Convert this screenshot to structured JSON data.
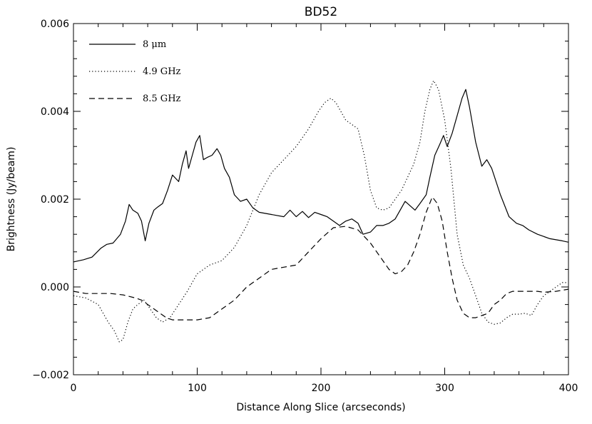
{
  "chart_data": {
    "type": "line",
    "title": "BD52",
    "xlabel": "Distance Along Slice (arcseconds)",
    "ylabel": "Brightness (Jy/beam)",
    "xlim": [
      0,
      400
    ],
    "ylim": [
      -0.002,
      0.006
    ],
    "x_ticks": [
      "0",
      "100",
      "200",
      "300",
      "400"
    ],
    "y_ticks": [
      "−0.002",
      "0.000",
      "0.002",
      "0.004",
      "0.006"
    ],
    "grid": false,
    "legend_position": "top-left",
    "colors": {
      "line": "#000000",
      "background": "#ffffff"
    },
    "series": [
      {
        "name": "8 μm",
        "style": "solid",
        "x": [
          0,
          8,
          15,
          22,
          27,
          32,
          38,
          42,
          45,
          48,
          52,
          55,
          58,
          61,
          65,
          68,
          72,
          76,
          80,
          85,
          88,
          91,
          93,
          96,
          99,
          102,
          105,
          108,
          112,
          116,
          119,
          122,
          126,
          130,
          135,
          140,
          145,
          150,
          160,
          170,
          175,
          180,
          185,
          190,
          195,
          200,
          205,
          210,
          215,
          220,
          225,
          230,
          234,
          240,
          245,
          250,
          255,
          260,
          265,
          268,
          272,
          276,
          280,
          285,
          288,
          292,
          296,
          299,
          302,
          306,
          310,
          314,
          317,
          320,
          325,
          330,
          334,
          338,
          345,
          352,
          358,
          363,
          368,
          375,
          385,
          395,
          400
        ],
        "y": [
          0.00057,
          0.00062,
          0.00068,
          0.00088,
          0.00097,
          0.001,
          0.0012,
          0.0015,
          0.00188,
          0.00175,
          0.00168,
          0.0015,
          0.00105,
          0.00145,
          0.00175,
          0.00182,
          0.0019,
          0.0022,
          0.00255,
          0.0024,
          0.0028,
          0.0031,
          0.0027,
          0.003,
          0.0033,
          0.00345,
          0.0029,
          0.00295,
          0.003,
          0.00315,
          0.003,
          0.0027,
          0.0025,
          0.0021,
          0.00195,
          0.002,
          0.0018,
          0.0017,
          0.00165,
          0.0016,
          0.00175,
          0.0016,
          0.00172,
          0.00158,
          0.0017,
          0.00165,
          0.0016,
          0.0015,
          0.0014,
          0.0015,
          0.00155,
          0.00145,
          0.0012,
          0.00125,
          0.0014,
          0.0014,
          0.00145,
          0.00155,
          0.0018,
          0.00195,
          0.00185,
          0.00175,
          0.0019,
          0.0021,
          0.0025,
          0.003,
          0.00325,
          0.00345,
          0.0032,
          0.0035,
          0.0039,
          0.0043,
          0.0045,
          0.0041,
          0.0033,
          0.00275,
          0.0029,
          0.0027,
          0.0021,
          0.0016,
          0.00145,
          0.0014,
          0.0013,
          0.0012,
          0.0011,
          0.00105,
          0.00102
        ]
      },
      {
        "name": "4.9 GHz",
        "style": "dotted",
        "x": [
          0,
          10,
          20,
          28,
          33,
          37,
          40,
          44,
          48,
          52,
          57,
          62,
          67,
          72,
          78,
          85,
          92,
          100,
          110,
          120,
          130,
          140,
          150,
          160,
          170,
          180,
          190,
          198,
          203,
          208,
          212,
          216,
          220,
          225,
          230,
          235,
          240,
          245,
          250,
          255,
          260,
          265,
          270,
          275,
          280,
          284,
          288,
          291,
          295,
          300,
          305,
          310,
          315,
          320,
          325,
          330,
          335,
          340,
          345,
          350,
          355,
          360,
          365,
          370,
          375,
          380,
          385,
          390,
          395,
          400
        ],
        "y": [
          -0.0002,
          -0.00025,
          -0.0004,
          -0.0008,
          -0.001,
          -0.00125,
          -0.0012,
          -0.0008,
          -0.0005,
          -0.0004,
          -0.0003,
          -0.0005,
          -0.0007,
          -0.0008,
          -0.0007,
          -0.0004,
          -0.0001,
          0.0003,
          0.0005,
          0.0006,
          0.0009,
          0.0014,
          0.0021,
          0.0026,
          0.0029,
          0.0032,
          0.0036,
          0.004,
          0.0042,
          0.0043,
          0.0042,
          0.004,
          0.0038,
          0.0037,
          0.0036,
          0.003,
          0.0022,
          0.0018,
          0.00175,
          0.0018,
          0.002,
          0.0022,
          0.0025,
          0.0028,
          0.0033,
          0.004,
          0.0045,
          0.0047,
          0.0045,
          0.0038,
          0.0027,
          0.0012,
          0.0005,
          0.0002,
          -0.0002,
          -0.0006,
          -0.0008,
          -0.00085,
          -0.00082,
          -0.0007,
          -0.00062,
          -0.00062,
          -0.0006,
          -0.00065,
          -0.0004,
          -0.0002,
          -0.0001,
          0.0,
          0.0001,
          0.0001
        ]
      },
      {
        "name": "8.5 GHz",
        "style": "dashed",
        "x": [
          0,
          10,
          20,
          30,
          40,
          50,
          55,
          60,
          65,
          70,
          75,
          80,
          90,
          100,
          110,
          120,
          130,
          140,
          150,
          160,
          170,
          180,
          190,
          200,
          210,
          220,
          230,
          240,
          250,
          255,
          260,
          265,
          270,
          275,
          280,
          285,
          290,
          294,
          298,
          302,
          306,
          310,
          315,
          320,
          325,
          330,
          335,
          340,
          345,
          350,
          355,
          360,
          365,
          370,
          375,
          380,
          390,
          400
        ],
        "y": [
          -0.0001,
          -0.00015,
          -0.00015,
          -0.00015,
          -0.00018,
          -0.00025,
          -0.0003,
          -0.0004,
          -0.0005,
          -0.0006,
          -0.0007,
          -0.00075,
          -0.00075,
          -0.00075,
          -0.0007,
          -0.0005,
          -0.0003,
          0.0,
          0.0002,
          0.0004,
          0.00045,
          0.0005,
          0.0008,
          0.0011,
          0.00135,
          0.00138,
          0.0013,
          0.001,
          0.0006,
          0.0004,
          0.0003,
          0.00035,
          0.0005,
          0.0008,
          0.0012,
          0.0017,
          0.00205,
          0.0019,
          0.0015,
          0.0008,
          0.0002,
          -0.0003,
          -0.0006,
          -0.0007,
          -0.0007,
          -0.00065,
          -0.0006,
          -0.0004,
          -0.0003,
          -0.00015,
          -0.0001,
          -0.0001,
          -0.0001,
          -0.0001,
          -0.0001,
          -0.00012,
          -0.0001,
          -5e-05
        ]
      }
    ]
  }
}
